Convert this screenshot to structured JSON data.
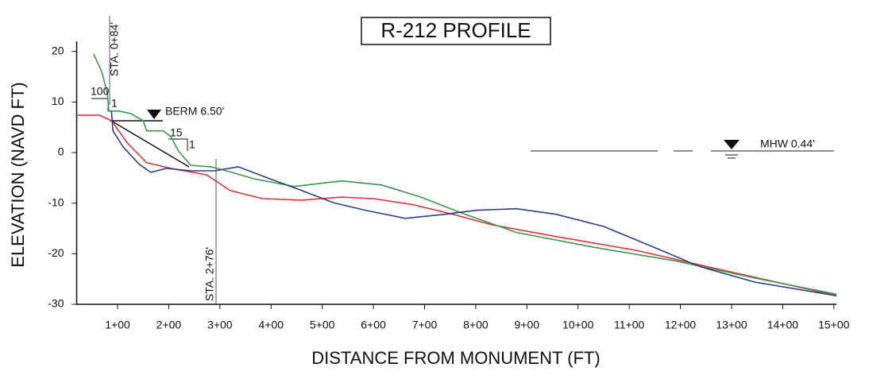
{
  "chart_data": {
    "type": "line",
    "title": "R-212 PROFILE",
    "x_label": "DISTANCE FROM MONUMENT (FT)",
    "y_label": "ELEVATION (NAVD FT)",
    "xlim": [
      20,
      1505
    ],
    "ylim": [
      -30,
      22
    ],
    "xticks": [
      {
        "value": 100,
        "label": "1+00"
      },
      {
        "value": 200,
        "label": "2+00"
      },
      {
        "value": 300,
        "label": "3+00"
      },
      {
        "value": 400,
        "label": "4+00"
      },
      {
        "value": 500,
        "label": "5+00"
      },
      {
        "value": 600,
        "label": "6+00"
      },
      {
        "value": 700,
        "label": "7+00"
      },
      {
        "value": 800,
        "label": "8+00"
      },
      {
        "value": 900,
        "label": "9+00"
      },
      {
        "value": 1000,
        "label": "10+00"
      },
      {
        "value": 1100,
        "label": "11+00"
      },
      {
        "value": 1200,
        "label": "12+00"
      },
      {
        "value": 1300,
        "label": "13+00"
      },
      {
        "value": 1400,
        "label": "14+00"
      },
      {
        "value": 1500,
        "label": "15+00"
      }
    ],
    "yticks": [
      20,
      10,
      0,
      -10,
      -20,
      -30
    ],
    "grid": false,
    "series": [
      {
        "color": "#e8303a",
        "x": [
          18,
          64,
          88,
          119,
          157,
          212,
          274,
          320,
          383,
          460,
          538,
          600,
          678,
          755,
          833,
          957,
          1112,
          1268,
          1423,
          1505
        ],
        "values": [
          7.4,
          7.4,
          6.3,
          1.9,
          -2,
          -3.3,
          -4.4,
          -7.5,
          -9.1,
          -9.4,
          -8.8,
          -9.1,
          -10.3,
          -12.2,
          -14.3,
          -16.6,
          -19.3,
          -22.9,
          -26.4,
          -28.3
        ]
      },
      {
        "color": "#3a9a4a",
        "x": [
          53,
          69,
          80,
          83,
          103,
          126,
          150,
          157,
          189,
          204,
          219,
          243,
          282,
          313,
          367,
          445,
          538,
          616,
          693,
          771,
          880,
          1035,
          1190,
          1345,
          1505
        ],
        "values": [
          19.5,
          16,
          11.7,
          8.2,
          8.2,
          7.7,
          6.3,
          4.3,
          4.3,
          3.2,
          0.3,
          -2.5,
          -2.8,
          -3.6,
          -5.2,
          -6.7,
          -5.6,
          -6.4,
          -8.8,
          -11.9,
          -15.8,
          -18.8,
          -21.4,
          -24.8,
          -28
        ]
      },
      {
        "color": "#2a3f8f",
        "x": [
          88,
          91,
          111,
          142,
          165,
          196,
          243,
          289,
          336,
          398,
          460,
          522,
          584,
          662,
          740,
          802,
          880,
          957,
          1050,
          1143,
          1237,
          1345,
          1505
        ],
        "values": [
          8.2,
          4.3,
          1.1,
          -2.3,
          -3.9,
          -3.1,
          -3.6,
          -3.6,
          -2.8,
          -5.2,
          -7.5,
          -9.9,
          -11.4,
          -13,
          -12.2,
          -11.4,
          -11.1,
          -12.2,
          -14.6,
          -18.5,
          -22.5,
          -25.6,
          -28.3
        ]
      }
    ],
    "annotations": [
      "STA. 0+84'",
      "STA. 2+76'",
      "100",
      "1",
      "BERM 6.50'",
      "15",
      "1",
      "MHW 0.44'"
    ]
  }
}
